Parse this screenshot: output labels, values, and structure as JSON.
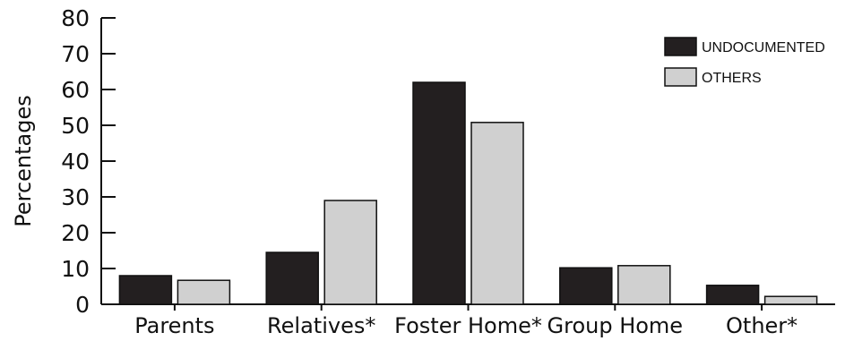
{
  "chart_data": {
    "type": "bar",
    "categories": [
      "Parents",
      "Relatives*",
      "Foster Home*",
      "Group Home",
      "Other*"
    ],
    "series": [
      {
        "name": "UNDOCUMENTED",
        "values": [
          8,
          14.5,
          62,
          10.2,
          5.3
        ],
        "color": "#231f20"
      },
      {
        "name": "OTHERS",
        "values": [
          6.7,
          29,
          50.8,
          10.8,
          2.2
        ],
        "color": "#d0d0d0"
      }
    ],
    "title": "",
    "xlabel": "",
    "ylabel": "Percentages",
    "ylim": [
      0,
      80
    ],
    "yticks": [
      0,
      10,
      20,
      30,
      40,
      50,
      60,
      70,
      80
    ],
    "grid": false,
    "legend_position": "top-right"
  }
}
